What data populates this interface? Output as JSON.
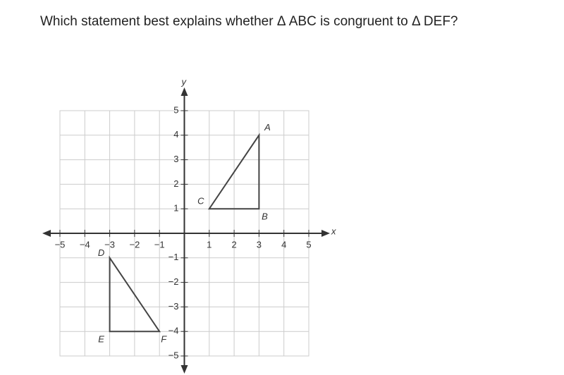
{
  "question": "Which statement best explains whether Δ ABC is congruent to Δ DEF?",
  "graph": {
    "x_label": "x",
    "y_label": "y",
    "xlim": [
      -5,
      5
    ],
    "ylim": [
      -5,
      5
    ],
    "xticks": [
      {
        "value": -5,
        "label": "−5"
      },
      {
        "value": -4,
        "label": "−4"
      },
      {
        "value": -3,
        "label": "−3"
      },
      {
        "value": -2,
        "label": "−2"
      },
      {
        "value": -1,
        "label": "−1"
      },
      1,
      2,
      3,
      4,
      5
    ],
    "yticks": [
      {
        "value": -5,
        "label": "−5"
      },
      {
        "value": -4,
        "label": "−4"
      },
      {
        "value": -3,
        "label": "−3"
      },
      {
        "value": -2,
        "label": "−2"
      },
      {
        "value": -1,
        "label": "−1"
      },
      1,
      2,
      3,
      4,
      5
    ],
    "triangles": [
      {
        "vertices": [
          {
            "label": "A",
            "x": 3,
            "y": 4
          },
          {
            "label": "B",
            "x": 3,
            "y": 1
          },
          {
            "label": "C",
            "x": 1,
            "y": 1
          }
        ]
      },
      {
        "vertices": [
          {
            "label": "D",
            "x": -3,
            "y": -1
          },
          {
            "label": "E",
            "x": -3,
            "y": -4
          },
          {
            "label": "F",
            "x": -1,
            "y": -4
          }
        ]
      }
    ]
  }
}
